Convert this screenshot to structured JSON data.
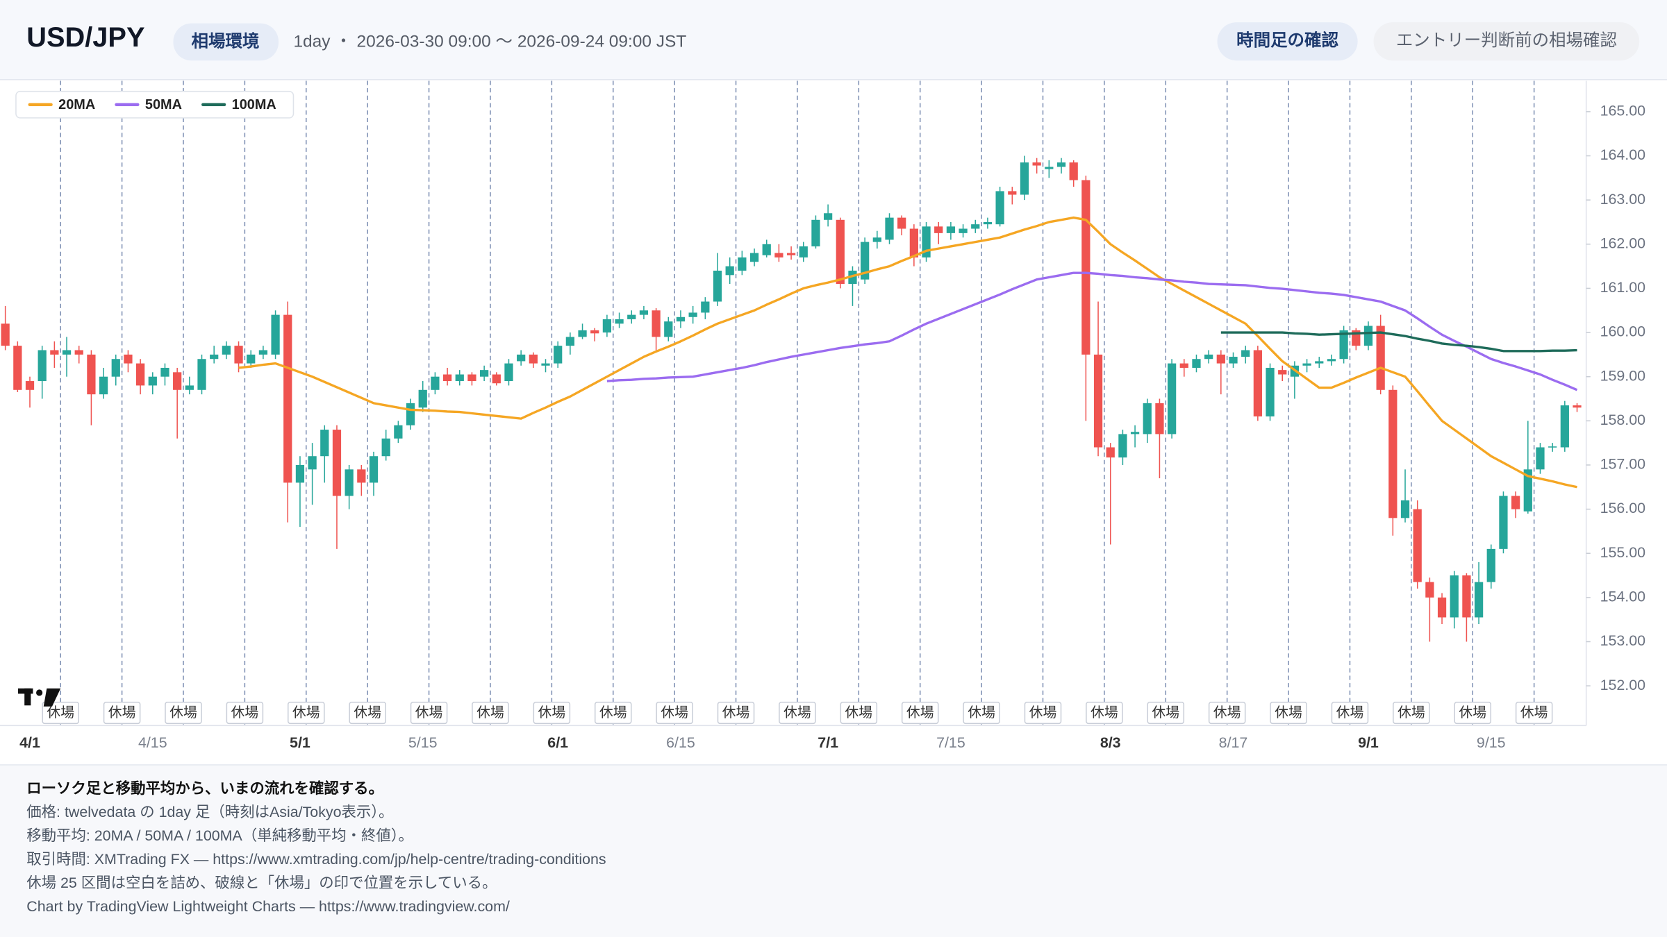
{
  "header": {
    "title": "USD/JPY",
    "badge": "相場環境",
    "subtitle": "1day ・ 2026-03-30 09:00 〜 2026-09-24 09:00 JST",
    "buttons": [
      "時間足の確認",
      "エントリー判断前の相場確認"
    ]
  },
  "chart_data": {
    "type": "candlestick",
    "categories": [
      null,
      null,
      "4/1",
      null,
      null,
      null,
      null,
      null,
      null,
      null,
      null,
      null,
      "4/15",
      null,
      null,
      null,
      null,
      null,
      null,
      null,
      null,
      null,
      null,
      null,
      "5/1",
      null,
      null,
      null,
      null,
      null,
      null,
      null,
      null,
      null,
      "5/15",
      null,
      null,
      null,
      null,
      null,
      null,
      null,
      null,
      null,
      null,
      "6/1",
      null,
      null,
      null,
      null,
      null,
      null,
      null,
      null,
      null,
      "6/15",
      null,
      null,
      null,
      null,
      null,
      null,
      null,
      null,
      null,
      null,
      null,
      "7/1",
      null,
      null,
      null,
      null,
      null,
      null,
      null,
      null,
      null,
      "7/15",
      null,
      null,
      null,
      null,
      null,
      null,
      null,
      null,
      null,
      null,
      null,
      null,
      "8/3",
      null,
      null,
      null,
      null,
      null,
      null,
      null,
      null,
      null,
      "8/17",
      null,
      null,
      null,
      null,
      null,
      null,
      null,
      null,
      null,
      null,
      "9/1",
      null,
      null,
      null,
      null,
      null,
      null,
      null,
      null,
      null,
      "9/15",
      null,
      null,
      null,
      null,
      null,
      null,
      null
    ],
    "open": [
      160.2,
      159.7,
      158.9,
      158.9,
      159.6,
      159.5,
      159.6,
      159.5,
      158.6,
      159.0,
      159.5,
      159.3,
      158.8,
      159.0,
      159.1,
      158.7,
      158.7,
      159.4,
      159.5,
      159.7,
      159.3,
      159.5,
      159.5,
      160.4,
      156.6,
      156.9,
      157.2,
      157.8,
      156.3,
      156.9,
      156.6,
      157.2,
      157.6,
      157.9,
      158.3,
      158.7,
      159.05,
      158.9,
      159.05,
      159.0,
      159.05,
      158.9,
      159.35,
      159.5,
      159.25,
      159.3,
      159.7,
      159.9,
      160.05,
      160.0,
      160.2,
      160.3,
      160.4,
      160.5,
      159.9,
      160.25,
      160.35,
      160.45,
      160.7,
      161.3,
      161.4,
      161.6,
      161.75,
      161.8,
      161.8,
      161.7,
      161.95,
      162.55,
      162.55,
      161.1,
      161.2,
      162.05,
      162.1,
      162.6,
      162.35,
      161.7,
      162.4,
      162.25,
      162.25,
      162.35,
      162.45,
      162.45,
      163.2,
      163.12,
      163.85,
      163.7,
      163.75,
      163.85,
      163.45,
      159.5,
      157.4,
      157.17,
      157.7,
      157.7,
      158.4,
      157.7,
      159.3,
      159.2,
      159.4,
      159.5,
      159.3,
      159.45,
      159.6,
      158.1,
      159.15,
      159.0,
      159.25,
      159.3,
      159.35,
      159.4,
      160.05,
      159.7,
      160.15,
      158.7,
      155.8,
      156.0,
      154.35,
      154.0,
      153.55,
      154.5,
      153.55,
      154.35,
      155.1,
      156.3,
      155.95,
      156.9,
      157.4,
      157.4,
      158.35
    ],
    "high": [
      160.6,
      159.8,
      159.0,
      159.7,
      159.8,
      159.9,
      159.7,
      159.6,
      159.2,
      159.5,
      159.6,
      159.4,
      159.1,
      159.3,
      159.2,
      159.0,
      159.5,
      159.7,
      159.8,
      159.8,
      159.6,
      159.7,
      160.5,
      160.7,
      157.2,
      157.5,
      157.9,
      157.9,
      157.0,
      157.0,
      157.3,
      157.8,
      158.0,
      158.5,
      158.9,
      159.1,
      159.2,
      159.15,
      159.1,
      159.25,
      159.1,
      159.4,
      159.6,
      159.55,
      159.4,
      159.8,
      160.0,
      160.2,
      160.1,
      160.4,
      160.45,
      160.5,
      160.6,
      160.55,
      160.35,
      160.5,
      160.6,
      160.8,
      161.8,
      161.7,
      161.85,
      161.9,
      162.1,
      162.0,
      161.95,
      162.05,
      162.65,
      162.9,
      162.6,
      161.5,
      162.15,
      162.3,
      162.7,
      162.65,
      162.45,
      162.5,
      162.5,
      162.5,
      162.45,
      162.55,
      162.6,
      163.3,
      163.3,
      164.0,
      163.95,
      163.9,
      163.95,
      163.9,
      163.55,
      160.7,
      157.5,
      157.8,
      157.9,
      158.5,
      158.5,
      159.4,
      159.4,
      159.5,
      159.6,
      159.6,
      159.55,
      159.7,
      159.7,
      159.3,
      159.25,
      159.35,
      159.4,
      159.45,
      159.5,
      160.15,
      160.1,
      160.25,
      160.4,
      158.8,
      156.9,
      156.2,
      154.45,
      154.1,
      154.6,
      154.55,
      154.8,
      155.2,
      156.4,
      156.4,
      158.0,
      157.5,
      157.5,
      158.45,
      158.4
    ],
    "low": [
      159.6,
      158.65,
      158.3,
      158.5,
      159.2,
      159.0,
      159.3,
      157.9,
      158.5,
      158.8,
      159.1,
      158.6,
      158.6,
      158.8,
      157.6,
      158.6,
      158.6,
      159.3,
      159.4,
      159.1,
      159.2,
      159.4,
      159.4,
      155.7,
      155.6,
      156.1,
      156.6,
      155.1,
      156.0,
      156.3,
      156.3,
      157.1,
      157.5,
      157.8,
      158.2,
      158.6,
      158.8,
      158.8,
      158.8,
      158.9,
      158.8,
      158.8,
      159.25,
      159.2,
      159.1,
      159.2,
      159.5,
      159.85,
      159.8,
      159.9,
      160.1,
      160.2,
      160.3,
      159.6,
      159.8,
      160.1,
      160.2,
      160.3,
      160.6,
      161.1,
      161.3,
      161.5,
      161.7,
      161.6,
      161.65,
      161.6,
      161.9,
      162.4,
      161.0,
      160.6,
      161.1,
      161.9,
      162.0,
      162.2,
      161.5,
      161.6,
      162.0,
      162.1,
      162.15,
      162.25,
      162.35,
      162.4,
      162.9,
      163.0,
      163.6,
      163.5,
      163.6,
      163.3,
      158.0,
      157.2,
      155.2,
      157.0,
      157.4,
      157.5,
      156.7,
      157.6,
      159.0,
      159.1,
      159.3,
      158.6,
      159.2,
      159.3,
      158.0,
      158.0,
      158.9,
      158.5,
      159.1,
      159.2,
      159.25,
      159.3,
      159.6,
      159.6,
      158.6,
      155.4,
      155.7,
      154.2,
      153.0,
      153.4,
      153.3,
      153.0,
      153.4,
      154.2,
      155.0,
      155.8,
      155.9,
      156.8,
      157.3,
      157.3,
      158.2
    ],
    "close": [
      159.7,
      158.7,
      158.7,
      159.6,
      159.5,
      159.6,
      159.5,
      158.6,
      159.0,
      159.4,
      159.3,
      158.8,
      159.0,
      159.2,
      158.7,
      158.8,
      159.4,
      159.5,
      159.7,
      159.3,
      159.5,
      159.6,
      160.4,
      156.6,
      157.0,
      157.2,
      157.8,
      156.3,
      156.9,
      156.6,
      157.2,
      157.6,
      157.9,
      158.4,
      158.7,
      159.0,
      158.9,
      159.05,
      158.9,
      159.15,
      158.85,
      159.3,
      159.5,
      159.3,
      159.3,
      159.7,
      159.9,
      160.05,
      159.98,
      160.3,
      160.3,
      160.4,
      160.5,
      159.9,
      160.25,
      160.35,
      160.45,
      160.7,
      161.4,
      161.5,
      161.7,
      161.8,
      162.0,
      161.7,
      161.75,
      161.95,
      162.55,
      162.7,
      161.1,
      161.4,
      162.05,
      162.15,
      162.6,
      162.35,
      161.7,
      162.4,
      162.25,
      162.4,
      162.35,
      162.45,
      162.5,
      163.2,
      163.12,
      163.85,
      163.78,
      163.75,
      163.85,
      163.45,
      159.5,
      157.4,
      157.17,
      157.7,
      157.75,
      158.4,
      157.7,
      159.3,
      159.2,
      159.4,
      159.5,
      159.3,
      159.45,
      159.6,
      158.1,
      159.2,
      159.05,
      159.25,
      159.3,
      159.35,
      159.4,
      160.05,
      159.7,
      160.15,
      158.7,
      155.8,
      156.2,
      154.35,
      154.0,
      153.55,
      154.5,
      153.55,
      154.35,
      155.1,
      156.3,
      156.0,
      156.9,
      157.4,
      157.42,
      158.35,
      158.3
    ],
    "up_color": "#26a69a",
    "down_color": "#ef5350",
    "series": [
      {
        "name": "20MA",
        "color": "#f5a623",
        "values": [
          null,
          null,
          null,
          null,
          null,
          null,
          null,
          null,
          null,
          null,
          null,
          null,
          null,
          null,
          null,
          null,
          null,
          null,
          null,
          159.2,
          159.23,
          159.27,
          159.3,
          159.2,
          159.1,
          159.0,
          158.88,
          158.76,
          158.64,
          158.52,
          158.4,
          158.35,
          158.3,
          158.25,
          158.24,
          158.23,
          158.21,
          158.2,
          158.17,
          158.14,
          158.11,
          158.08,
          158.05,
          158.18,
          158.3,
          158.43,
          158.55,
          158.7,
          158.85,
          159.0,
          159.15,
          159.3,
          159.45,
          159.57,
          159.68,
          159.8,
          159.93,
          160.07,
          160.2,
          160.3,
          160.4,
          160.5,
          160.63,
          160.75,
          160.88,
          161.0,
          161.07,
          161.13,
          161.2,
          161.28,
          161.35,
          161.43,
          161.5,
          161.62,
          161.73,
          161.85,
          161.9,
          161.95,
          162.0,
          162.05,
          162.1,
          162.15,
          162.24,
          162.33,
          162.41,
          162.5,
          162.55,
          162.6,
          162.55,
          162.28,
          162.0,
          161.81,
          161.63,
          161.44,
          161.25,
          161.1,
          160.95,
          160.8,
          160.65,
          160.5,
          160.35,
          160.2,
          159.92,
          159.63,
          159.35,
          159.15,
          158.95,
          158.75,
          158.75,
          158.86,
          158.98,
          159.09,
          159.2,
          159.1,
          159.0,
          158.67,
          158.33,
          158.0,
          157.8,
          157.6,
          157.4,
          157.2,
          157.05,
          156.9,
          156.75,
          156.69,
          156.63,
          156.56,
          156.5
        ]
      },
      {
        "name": "50MA",
        "color": "#9b6cf0",
        "values": [
          null,
          null,
          null,
          null,
          null,
          null,
          null,
          null,
          null,
          null,
          null,
          null,
          null,
          null,
          null,
          null,
          null,
          null,
          null,
          null,
          null,
          null,
          null,
          null,
          null,
          null,
          null,
          null,
          null,
          null,
          null,
          null,
          null,
          null,
          null,
          null,
          null,
          null,
          null,
          null,
          null,
          null,
          null,
          null,
          null,
          null,
          null,
          null,
          null,
          158.9,
          158.92,
          158.93,
          158.95,
          158.96,
          158.98,
          158.99,
          159.0,
          159.05,
          159.1,
          159.15,
          159.2,
          159.26,
          159.33,
          159.39,
          159.45,
          159.5,
          159.55,
          159.6,
          159.65,
          159.69,
          159.73,
          159.76,
          159.8,
          159.93,
          160.07,
          160.2,
          160.31,
          160.42,
          160.53,
          160.64,
          160.75,
          160.86,
          160.98,
          161.09,
          161.2,
          161.25,
          161.3,
          161.35,
          161.35,
          161.33,
          161.3,
          161.28,
          161.25,
          161.23,
          161.2,
          161.18,
          161.15,
          161.13,
          161.1,
          161.09,
          161.08,
          161.07,
          161.04,
          161.01,
          160.99,
          160.96,
          160.93,
          160.9,
          160.88,
          160.85,
          160.8,
          160.75,
          160.7,
          160.6,
          160.5,
          160.32,
          160.13,
          159.95,
          159.81,
          159.68,
          159.54,
          159.4,
          159.31,
          159.23,
          159.14,
          159.05,
          158.93,
          158.82,
          158.7
        ]
      },
      {
        "name": "100MA",
        "color": "#1e6b5a",
        "values": [
          null,
          null,
          null,
          null,
          null,
          null,
          null,
          null,
          null,
          null,
          null,
          null,
          null,
          null,
          null,
          null,
          null,
          null,
          null,
          null,
          null,
          null,
          null,
          null,
          null,
          null,
          null,
          null,
          null,
          null,
          null,
          null,
          null,
          null,
          null,
          null,
          null,
          null,
          null,
          null,
          null,
          null,
          null,
          null,
          null,
          null,
          null,
          null,
          null,
          null,
          null,
          null,
          null,
          null,
          null,
          null,
          null,
          null,
          null,
          null,
          null,
          null,
          null,
          null,
          null,
          null,
          null,
          null,
          null,
          null,
          null,
          null,
          null,
          null,
          null,
          null,
          null,
          null,
          null,
          null,
          null,
          null,
          null,
          null,
          null,
          null,
          null,
          null,
          null,
          null,
          null,
          null,
          null,
          null,
          null,
          null,
          null,
          null,
          null,
          160.0,
          160.0,
          160.0,
          160.0,
          160.0,
          160.0,
          159.98,
          159.97,
          159.95,
          159.96,
          159.97,
          159.98,
          159.99,
          160.0,
          159.96,
          159.92,
          159.86,
          159.81,
          159.75,
          159.72,
          159.7,
          159.67,
          159.63,
          159.58,
          159.58,
          159.58,
          159.58,
          159.59,
          159.59,
          159.6
        ]
      }
    ],
    "ylim": [
      151.1,
      165.7
    ],
    "yticks": [
      {
        "value": 152,
        "label": "152.00"
      },
      {
        "value": 153,
        "label": "153.00"
      },
      {
        "value": 154,
        "label": "154.00"
      },
      {
        "value": 155,
        "label": "155.00"
      },
      {
        "value": 156,
        "label": "156.00"
      },
      {
        "value": 157,
        "label": "157.00"
      },
      {
        "value": 158,
        "label": "158.00"
      },
      {
        "value": 159,
        "label": "159.00"
      },
      {
        "value": 160,
        "label": "160.00"
      },
      {
        "value": 161,
        "label": "161.00"
      },
      {
        "value": 162,
        "label": "162.00"
      },
      {
        "value": 163,
        "label": "163.00"
      },
      {
        "value": 164,
        "label": "164.00"
      },
      {
        "value": 165,
        "label": "165.00"
      }
    ],
    "grid": false,
    "legend": "top-left",
    "closed_label": "休場",
    "closed_after": [
      4,
      9,
      14,
      19,
      24,
      29,
      34,
      39,
      44,
      49,
      54,
      59,
      64,
      69,
      74,
      79,
      84,
      89,
      94,
      99,
      104,
      109,
      114,
      119,
      124
    ]
  },
  "notes": [
    "ローソク足と移動平均から、いまの流れを確認する。",
    "価格: twelvedata の 1day 足（時刻はAsia/Tokyo表示）。",
    "移動平均: 20MA / 50MA / 100MA（単純移動平均・終値）。",
    "取引時間: XMTrading FX — https://www.xmtrading.com/jp/help-centre/trading-conditions",
    "休場 25 区間は空白を詰め、破線と「休場」の印で位置を示している。",
    "Chart by TradingView Lightweight Charts — https://www.tradingview.com/"
  ]
}
